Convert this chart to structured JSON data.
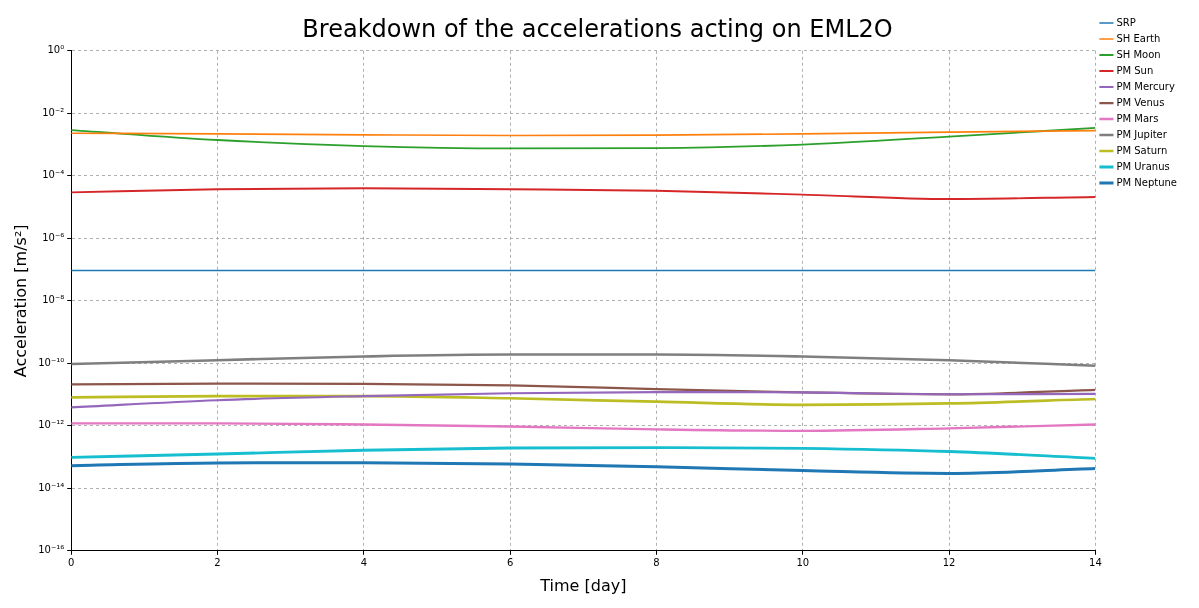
{
  "chart_data": {
    "type": "line",
    "title": "Breakdown of the accelerations acting on EML2O",
    "xlabel": "Time [day]",
    "ylabel": "Acceleration [m/s²]",
    "x": [
      0,
      2,
      4,
      6,
      8,
      10,
      12,
      14
    ],
    "series": [
      {
        "name": "SRP",
        "color": "#1f77b4",
        "values": [
          9.3e-08,
          9.3e-08,
          9.3e-08,
          9.3e-08,
          9.3e-08,
          9.3e-08,
          9.3e-08,
          9.3e-08
        ]
      },
      {
        "name": "SH Earth",
        "color": "#ff7f0e",
        "values": [
          0.0023,
          0.0022,
          0.00205,
          0.00195,
          0.002,
          0.0022,
          0.0025,
          0.0028
        ]
      },
      {
        "name": "SH Moon",
        "color": "#2ca02c",
        "values": [
          0.0029,
          0.0014,
          0.00089,
          0.00075,
          0.00077,
          0.001,
          0.0018,
          0.0034
        ]
      },
      {
        "name": "PM Sun",
        "color": "#d62728",
        "values": [
          2.95e-05,
          3.7e-05,
          4e-05,
          3.7e-05,
          3.3e-05,
          2.5e-05,
          1.8e-05,
          2.1e-05
        ]
      },
      {
        "name": "PM Mercury",
        "color": "#9467bd",
        "values": [
          3.9e-12,
          6.6e-12,
          8.9e-12,
          1.1e-11,
          1.2e-11,
          1.17e-11,
          1.02e-11,
          1.05e-11
        ]
      },
      {
        "name": "PM Venus",
        "color": "#8c564b",
        "values": [
          2.1e-11,
          2.25e-11,
          2.2e-11,
          1.95e-11,
          1.5e-11,
          1.17e-11,
          1.02e-11,
          1.4e-11
        ]
      },
      {
        "name": "PM Mars",
        "color": "#e377c2",
        "values": [
          1.2e-12,
          1.2e-12,
          1.1e-12,
          9.5e-13,
          7.7e-13,
          6.9e-13,
          8.3e-13,
          1.1e-12
        ]
      },
      {
        "name": "PM Jupiter",
        "color": "#7f7f7f",
        "values": [
          9.5e-11,
          1.26e-10,
          1.65e-10,
          1.9e-10,
          1.9e-10,
          1.65e-10,
          1.26e-10,
          8.3e-11
        ]
      },
      {
        "name": "PM Saturn",
        "color": "#bcbd22",
        "values": [
          8.1e-12,
          8.9e-12,
          8.9e-12,
          7.6e-12,
          5.9e-12,
          4.7e-12,
          5.2e-12,
          7.2e-12
        ]
      },
      {
        "name": "PM Uranus",
        "color": "#17becf",
        "values": [
          9.8e-14,
          1.25e-13,
          1.65e-13,
          1.95e-13,
          2e-13,
          1.9e-13,
          1.5e-13,
          9.1e-14
        ]
      },
      {
        "name": "PM Neptune",
        "color": "#1f77b4",
        "values": [
          5.3e-14,
          6.5e-14,
          6.6e-14,
          6e-14,
          4.9e-14,
          3.7e-14,
          3e-14,
          4.3e-14
        ]
      }
    ],
    "xlim": [
      0,
      14
    ],
    "xticks": [
      0,
      2,
      4,
      6,
      8,
      10,
      12,
      14
    ],
    "log": "y",
    "ylim": [
      1e-16,
      1
    ],
    "yticks": [
      {
        "value": 1e-16,
        "label": "10⁻¹⁶"
      },
      {
        "value": 1e-14,
        "label": "10⁻¹⁴"
      },
      {
        "value": 1e-12,
        "label": "10⁻¹²"
      },
      {
        "value": 1e-10,
        "label": "10⁻¹⁰"
      },
      {
        "value": 1e-08,
        "label": "10⁻⁸"
      },
      {
        "value": 1e-06,
        "label": "10⁻⁶"
      },
      {
        "value": 0.0001,
        "label": "10⁻⁴"
      },
      {
        "value": 0.01,
        "label": "10⁻²"
      },
      {
        "value": 1,
        "label": "10⁰"
      }
    ],
    "grid": true,
    "legend": "top right",
    "line_style": "solid",
    "marker": "none"
  }
}
